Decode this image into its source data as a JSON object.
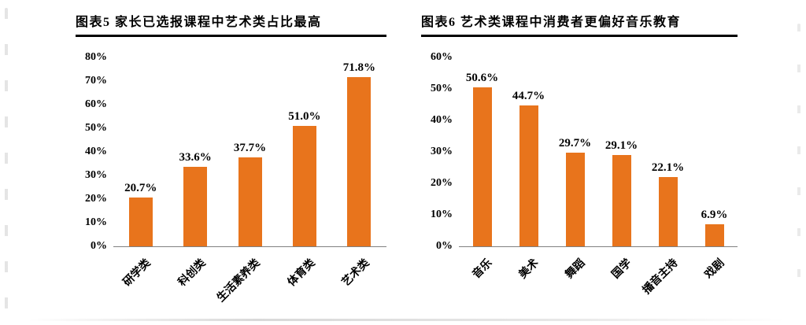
{
  "chart_data": [
    {
      "type": "bar",
      "title": "图表5 家长已选报课程中艺术类占比最高",
      "categories": [
        "研学类",
        "科创类",
        "生活素养类",
        "体育类",
        "艺术类"
      ],
      "values": [
        20.7,
        33.6,
        37.7,
        51.0,
        71.8
      ],
      "value_labels": [
        "20.7%",
        "33.6%",
        "37.7%",
        "51.0%",
        "71.8%"
      ],
      "xlabel": "",
      "ylabel": "",
      "ylim": [
        0,
        80
      ],
      "ytick_values": [
        80,
        70,
        60,
        50,
        40,
        30,
        20,
        10,
        0
      ],
      "ytick_labels": [
        "80%",
        "70%",
        "60%",
        "50%",
        "40%",
        "30%",
        "20%",
        "10%",
        "0%"
      ],
      "grid": false,
      "legend": null,
      "bar_color": "#E8741C"
    },
    {
      "type": "bar",
      "title": "图表6 艺术类课程中消费者更偏好音乐教育",
      "categories": [
        "音乐",
        "美术",
        "舞蹈",
        "国学",
        "播音主持",
        "戏剧"
      ],
      "values": [
        50.6,
        44.7,
        29.7,
        29.1,
        22.1,
        6.9
      ],
      "value_labels": [
        "50.6%",
        "44.7%",
        "29.7%",
        "29.1%",
        "22.1%",
        "6.9%"
      ],
      "xlabel": "",
      "ylabel": "",
      "ylim": [
        0,
        60
      ],
      "ytick_values": [
        60,
        50,
        40,
        30,
        20,
        10,
        0
      ],
      "ytick_labels": [
        "60%",
        "50%",
        "40%",
        "30%",
        "20%",
        "10%",
        "0%"
      ],
      "grid": false,
      "legend": null,
      "bar_color": "#E8741C"
    }
  ]
}
